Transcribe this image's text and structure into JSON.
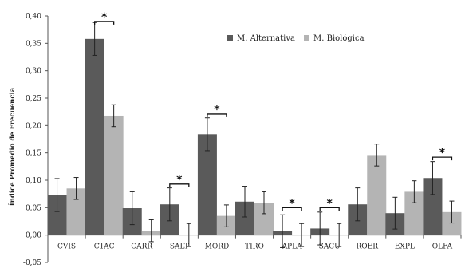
{
  "chart_data": {
    "type": "bar",
    "ylabel": "Índice Promedio de Frecuencia",
    "ylim": [
      -0.05,
      0.4
    ],
    "yticks": [
      -0.05,
      0.0,
      0.05,
      0.1,
      0.15,
      0.2,
      0.25,
      0.3,
      0.35,
      0.4
    ],
    "ytick_labels": [
      "-0,05",
      "0,00",
      "0,05",
      "0,10",
      "0,15",
      "0,20",
      "0,25",
      "0,30",
      "0,35",
      "0,40"
    ],
    "categories": [
      "CVIS",
      "CTAC",
      "CARR",
      "SALT",
      "MORD",
      "TIRO",
      "APLA",
      "SACU",
      "ROER",
      "EXPL",
      "OLFA"
    ],
    "series": [
      {
        "name": "M. Alternativa",
        "color": "#5a5a5a",
        "values": [
          0.073,
          0.358,
          0.049,
          0.056,
          0.184,
          0.061,
          0.007,
          0.012,
          0.056,
          0.04,
          0.104
        ],
        "errors": [
          0.03,
          0.03,
          0.03,
          0.03,
          0.03,
          0.028,
          0.03,
          0.03,
          0.03,
          0.029,
          0.03
        ]
      },
      {
        "name": "M. Biológica",
        "color": "#b4b4b4",
        "values": [
          0.085,
          0.218,
          0.008,
          0.0,
          0.035,
          0.059,
          0.0,
          0.0,
          0.146,
          0.079,
          0.042
        ],
        "errors": [
          0.02,
          0.02,
          0.02,
          0.021,
          0.02,
          0.02,
          0.021,
          0.021,
          0.02,
          0.02,
          0.02
        ]
      }
    ],
    "significance": [
      {
        "category": "CTAC",
        "mark": "*",
        "y": 0.39
      },
      {
        "category": "SALT",
        "mark": "*",
        "y": 0.093
      },
      {
        "category": "MORD",
        "mark": "*",
        "y": 0.221
      },
      {
        "category": "APLA",
        "mark": "*",
        "y": 0.05
      },
      {
        "category": "SACU",
        "mark": "*",
        "y": 0.05
      },
      {
        "category": "OLFA",
        "mark": "*",
        "y": 0.142
      }
    ],
    "legend_position": "top-right",
    "grid": false
  }
}
